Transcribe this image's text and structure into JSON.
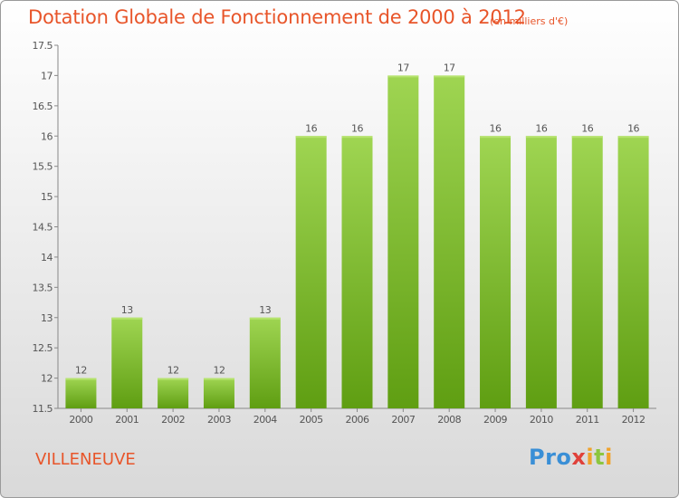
{
  "chart_data": {
    "type": "bar",
    "title": "Dotation Globale de Fonctionnement de 2000 à 2012",
    "unit": "(en milliers d'€)",
    "categories": [
      "2000",
      "2001",
      "2002",
      "2003",
      "2004",
      "2005",
      "2006",
      "2007",
      "2008",
      "2009",
      "2010",
      "2011",
      "2012"
    ],
    "values": [
      12,
      13,
      12,
      12,
      13,
      16,
      16,
      17,
      17,
      16,
      16,
      16,
      16
    ],
    "data_labels": [
      "12",
      "13",
      "12",
      "12",
      "13",
      "16",
      "16",
      "17",
      "17",
      "16",
      "16",
      "16",
      "16"
    ],
    "ylim": [
      11.5,
      17.5
    ],
    "yticks": [
      "11.5",
      "12",
      "12.5",
      "13",
      "13.5",
      "14",
      "14.5",
      "15",
      "15.5",
      "16",
      "16.5",
      "17",
      "17.5"
    ],
    "grid": false,
    "bar_color": "#7fc232"
  },
  "footer": {
    "place": "VILLENEUVE",
    "logo": {
      "p1": "Pro",
      "p2": "x",
      "p3": "i",
      "p4": "t",
      "p5": "i"
    }
  }
}
